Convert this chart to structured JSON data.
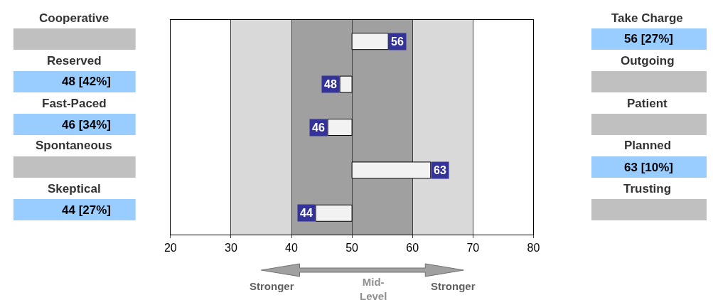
{
  "chart_data": {
    "type": "bar",
    "orientation": "horizontal",
    "categories": [
      null,
      null,
      null,
      null,
      null
    ],
    "base": [
      50,
      48,
      46,
      50,
      44
    ],
    "values": [
      6,
      2,
      4,
      13,
      6
    ],
    "color": "#f2f2f2",
    "xlim": [
      20,
      80
    ],
    "xticks": [
      20,
      30,
      40,
      50,
      60,
      70,
      80
    ],
    "grid": "x",
    "tick_labels": "x",
    "bands": [
      {
        "axis": "x",
        "from": 30,
        "to": 40,
        "color": "#d9d9d9"
      },
      {
        "axis": "x",
        "from": 40,
        "to": 60,
        "color": "#a0a0a0"
      },
      {
        "axis": "x",
        "from": 60,
        "to": 70,
        "color": "#d9d9d9"
      }
    ],
    "annotations": [
      "Cooperative",
      "Take Charge",
      "56 [27%]",
      "Reserved",
      "Outgoing",
      "48 [42%]",
      "Fast-Paced",
      "Patient",
      "46 [34%]",
      "Spontaneous",
      "Planned",
      "63 [10%]",
      "Skeptical",
      "Trusting",
      "44 [27%]",
      "Stronger",
      "Mid-Level",
      "Stronger",
      {
        "text": "56",
        "x": 56
      },
      {
        "text": "48",
        "x": 48
      },
      {
        "text": "46",
        "x": 46
      },
      {
        "text": "63",
        "x": 63
      },
      {
        "text": "44",
        "x": 44
      }
    ]
  }
}
